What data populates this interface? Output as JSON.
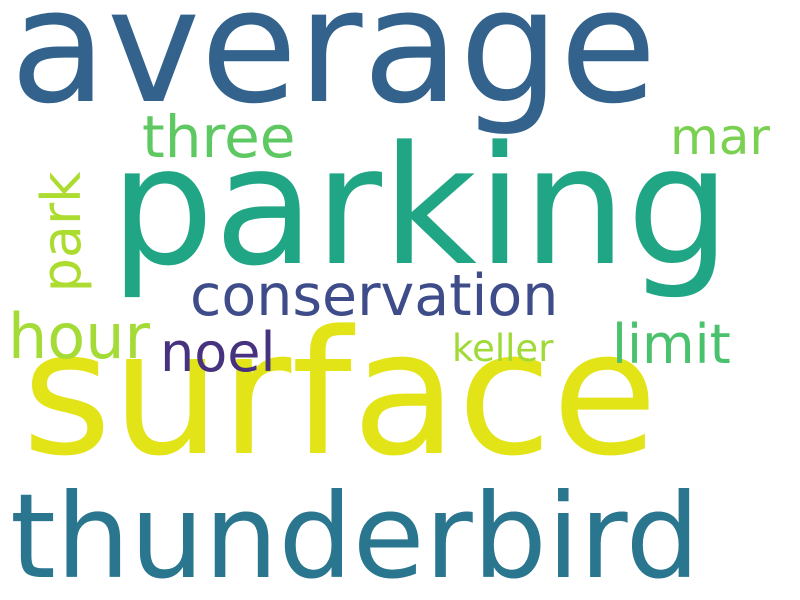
{
  "words": {
    "average": {
      "text": "average",
      "color": "#33638d"
    },
    "parking": {
      "text": "parking",
      "color": "#21a685"
    },
    "surface": {
      "text": "surface",
      "color": "#e2e418"
    },
    "thunderbird": {
      "text": "thunderbird",
      "color": "#2a768e"
    },
    "conservation": {
      "text": "conservation",
      "color": "#3e4c8a"
    },
    "three": {
      "text": "three",
      "color": "#5ec962"
    },
    "mar": {
      "text": "mar",
      "color": "#7ad151"
    },
    "hour": {
      "text": "hour",
      "color": "#a5db36"
    },
    "noel": {
      "text": "noel",
      "color": "#46327e"
    },
    "keller": {
      "text": "keller",
      "color": "#a0da39"
    },
    "limit": {
      "text": "limit",
      "color": "#4ac16d"
    },
    "park": {
      "text": "park",
      "color": "#addc30"
    }
  }
}
